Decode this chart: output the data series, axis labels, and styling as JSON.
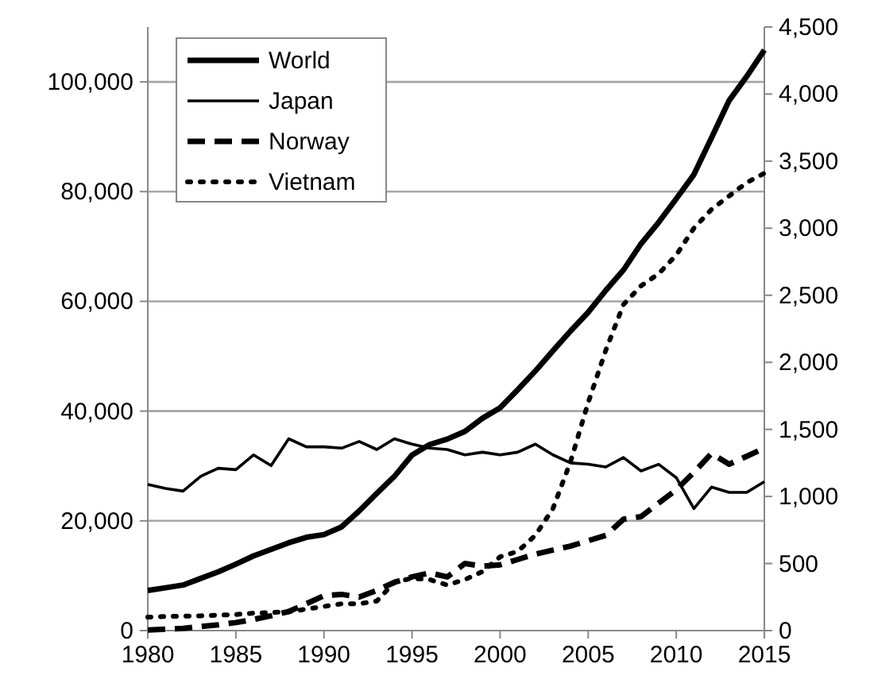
{
  "chart_data": {
    "type": "line",
    "x": [
      1980,
      1981,
      1982,
      1983,
      1984,
      1985,
      1986,
      1987,
      1988,
      1989,
      1990,
      1991,
      1992,
      1993,
      1994,
      1995,
      1996,
      1997,
      1998,
      1999,
      2000,
      2001,
      2002,
      2003,
      2004,
      2005,
      2006,
      2007,
      2008,
      2009,
      2010,
      2011,
      2012,
      2013,
      2014,
      2015
    ],
    "series": [
      {
        "name": "World",
        "color": "#000000",
        "line_style": "solid",
        "values": [
          7300,
          7800,
          8300,
          9500,
          10700,
          12100,
          13600,
          14800,
          16000,
          17000,
          17500,
          18900,
          21800,
          25000,
          28100,
          32000,
          33900,
          34900,
          36300,
          38700,
          40600,
          43900,
          47300,
          51000,
          54600,
          58000,
          62000,
          65700,
          70500,
          74400,
          78700,
          83100,
          89800,
          96600,
          101000,
          105800
        ]
      },
      {
        "name": "Japan",
        "color": "#000000",
        "line_style": "solid",
        "axis": "y2",
        "values": [
          1090,
          1060,
          1040,
          1150,
          1210,
          1200,
          1310,
          1230,
          1430,
          1370,
          1370,
          1360,
          1410,
          1350,
          1430,
          1390,
          1360,
          1350,
          1310,
          1330,
          1310,
          1330,
          1390,
          1310,
          1250,
          1240,
          1220,
          1290,
          1190,
          1240,
          1140,
          910,
          1070,
          1030,
          1030,
          1110
        ]
      },
      {
        "name": "Norway",
        "color": "#000000",
        "line_style": "dashed",
        "axis": "y2",
        "values": [
          4,
          10,
          16,
          30,
          43,
          60,
          83,
          110,
          142,
          200,
          260,
          270,
          250,
          300,
          360,
          400,
          430,
          400,
          500,
          480,
          490,
          530,
          570,
          600,
          630,
          670,
          710,
          830,
          850,
          950,
          1050,
          1180,
          1320,
          1240,
          1300,
          1360
        ]
      },
      {
        "name": "Vietnam",
        "color": "#000000",
        "line_style": "dotted",
        "axis": "y2",
        "values": [
          100,
          105,
          108,
          110,
          115,
          120,
          130,
          135,
          140,
          160,
          180,
          200,
          200,
          220,
          360,
          390,
          380,
          340,
          380,
          440,
          550,
          590,
          710,
          910,
          1260,
          1700,
          2090,
          2430,
          2570,
          2660,
          2800,
          3000,
          3140,
          3240,
          3340,
          3410
        ]
      }
    ],
    "xlim": [
      1980,
      2015
    ],
    "xticks": [
      1980,
      1985,
      1990,
      1995,
      2000,
      2005,
      2010,
      2015
    ],
    "ylim": [
      0,
      110000
    ],
    "yticks": [
      0,
      {
        "value": 20000,
        "label": "20,000"
      },
      {
        "value": 40000,
        "label": "40,000"
      },
      {
        "value": 60000,
        "label": "60,000"
      },
      {
        "value": 80000,
        "label": "80,000"
      },
      {
        "value": 100000,
        "label": "100,000"
      }
    ],
    "y2lim": [
      0,
      4500
    ],
    "y2ticks": [
      0,
      500,
      {
        "value": 1000,
        "label": "1,000"
      },
      {
        "value": 1500,
        "label": "1,500"
      },
      {
        "value": 2000,
        "label": "2,000"
      },
      {
        "value": 2500,
        "label": "2,500"
      },
      {
        "value": 3000,
        "label": "3,000"
      },
      {
        "value": 3500,
        "label": "3,500"
      },
      {
        "value": 4000,
        "label": "4,000"
      },
      {
        "value": 4500,
        "label": "4,500"
      }
    ],
    "grid": "y",
    "legend": "top left"
  }
}
